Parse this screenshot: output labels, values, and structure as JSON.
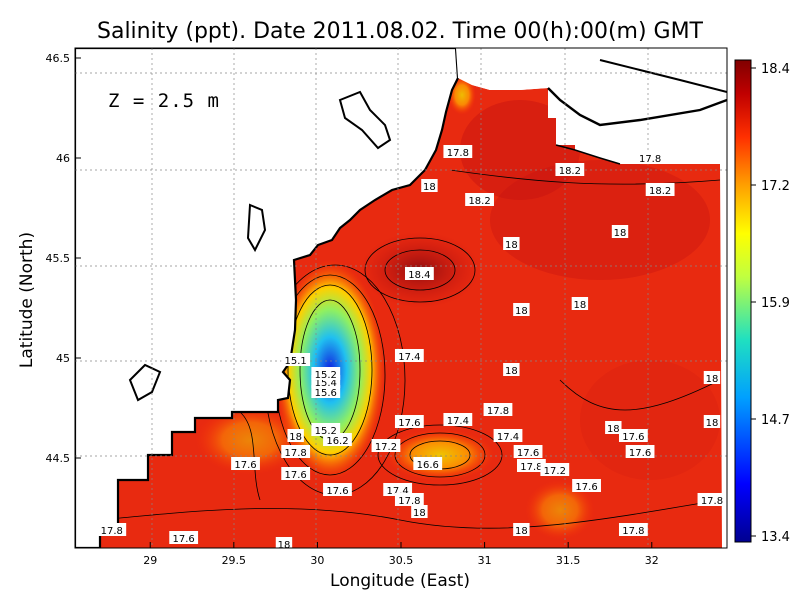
{
  "chart_data": {
    "type": "heatmap",
    "title": "Salinity (ppt). Date 2011.08.02. Time 00(h):00(m) GMT",
    "depth_label": "Z = 2.5 m",
    "xlabel": "Longitude (East)",
    "ylabel": "Latitude (North)",
    "xlim": [
      28.55,
      32.45
    ],
    "ylim": [
      44.05,
      46.55
    ],
    "x_ticks": [
      "29",
      "29.5",
      "30",
      "30.5",
      "31",
      "31.5",
      "32"
    ],
    "y_ticks": [
      "44.5",
      "45",
      "45.5",
      "46",
      "46.5"
    ],
    "grid": true,
    "colorbar": {
      "min": 13.4,
      "max": 18.4,
      "tick_labels": [
        "18.4",
        "17.2",
        "15.9",
        "14.7",
        "13.4"
      ],
      "position": "right"
    },
    "contour_labels": [
      {
        "text": "17.8",
        "lon": 30.84,
        "lat": 46.03
      },
      {
        "text": "17.8",
        "lon": 31.99,
        "lat": 46.0
      },
      {
        "text": "18.2",
        "lon": 31.51,
        "lat": 45.94
      },
      {
        "text": "18",
        "lon": 30.67,
        "lat": 45.86
      },
      {
        "text": "18.2",
        "lon": 32.05,
        "lat": 45.84
      },
      {
        "text": "18.2",
        "lon": 30.97,
        "lat": 45.79
      },
      {
        "text": "18",
        "lon": 31.81,
        "lat": 45.63
      },
      {
        "text": "18",
        "lon": 31.16,
        "lat": 45.57
      },
      {
        "text": "18.4",
        "lon": 30.61,
        "lat": 45.42
      },
      {
        "text": "18",
        "lon": 31.57,
        "lat": 45.27
      },
      {
        "text": "18",
        "lon": 31.22,
        "lat": 45.24
      },
      {
        "text": "17.4",
        "lon": 30.55,
        "lat": 45.01
      },
      {
        "text": "18",
        "lon": 31.16,
        "lat": 44.94
      },
      {
        "text": "18",
        "lon": 32.36,
        "lat": 44.9
      },
      {
        "text": "17.8",
        "lon": 31.08,
        "lat": 44.74
      },
      {
        "text": "17.4",
        "lon": 30.84,
        "lat": 44.69
      },
      {
        "text": "17.6",
        "lon": 30.55,
        "lat": 44.68
      },
      {
        "text": "18",
        "lon": 32.36,
        "lat": 44.68
      },
      {
        "text": "18",
        "lon": 31.77,
        "lat": 44.65
      },
      {
        "text": "17.6",
        "lon": 31.89,
        "lat": 44.61
      },
      {
        "text": "17.4",
        "lon": 31.14,
        "lat": 44.61
      },
      {
        "text": "17.2",
        "lon": 30.41,
        "lat": 44.56
      },
      {
        "text": "17.6",
        "lon": 31.26,
        "lat": 44.53
      },
      {
        "text": "17.6",
        "lon": 31.93,
        "lat": 44.53
      },
      {
        "text": "17.8",
        "lon": 31.28,
        "lat": 44.46
      },
      {
        "text": "17.2",
        "lon": 31.42,
        "lat": 44.44
      },
      {
        "text": "16.6",
        "lon": 30.66,
        "lat": 44.47
      },
      {
        "text": "17.6",
        "lon": 31.61,
        "lat": 44.36
      },
      {
        "text": "17.4",
        "lon": 30.48,
        "lat": 44.34
      },
      {
        "text": "17.8",
        "lon": 30.55,
        "lat": 44.29
      },
      {
        "text": "17.8",
        "lon": 32.36,
        "lat": 44.29
      },
      {
        "text": "18",
        "lon": 30.61,
        "lat": 44.23
      },
      {
        "text": "18",
        "lon": 31.22,
        "lat": 44.14
      },
      {
        "text": "17.8",
        "lon": 31.89,
        "lat": 44.14
      },
      {
        "text": "17.8",
        "lon": 28.77,
        "lat": 44.14
      },
      {
        "text": "17.6",
        "lon": 29.2,
        "lat": 44.1
      },
      {
        "text": "18",
        "lon": 29.8,
        "lat": 44.07
      },
      {
        "text": "17.6",
        "lon": 30.12,
        "lat": 44.34
      },
      {
        "text": "17.6",
        "lon": 29.87,
        "lat": 44.42
      },
      {
        "text": "17.6",
        "lon": 29.57,
        "lat": 44.47
      },
      {
        "text": "17.8",
        "lon": 29.87,
        "lat": 44.53
      },
      {
        "text": "18",
        "lon": 29.87,
        "lat": 44.61
      },
      {
        "text": "16.2",
        "lon": 30.12,
        "lat": 44.59
      },
      {
        "text": "15.2",
        "lon": 30.05,
        "lat": 44.64
      },
      {
        "text": "15.6",
        "lon": 30.05,
        "lat": 44.83
      },
      {
        "text": "15.4",
        "lon": 30.05,
        "lat": 44.88
      },
      {
        "text": "15.2",
        "lon": 30.05,
        "lat": 44.92
      },
      {
        "text": "15.1",
        "lon": 29.87,
        "lat": 44.99
      }
    ]
  }
}
